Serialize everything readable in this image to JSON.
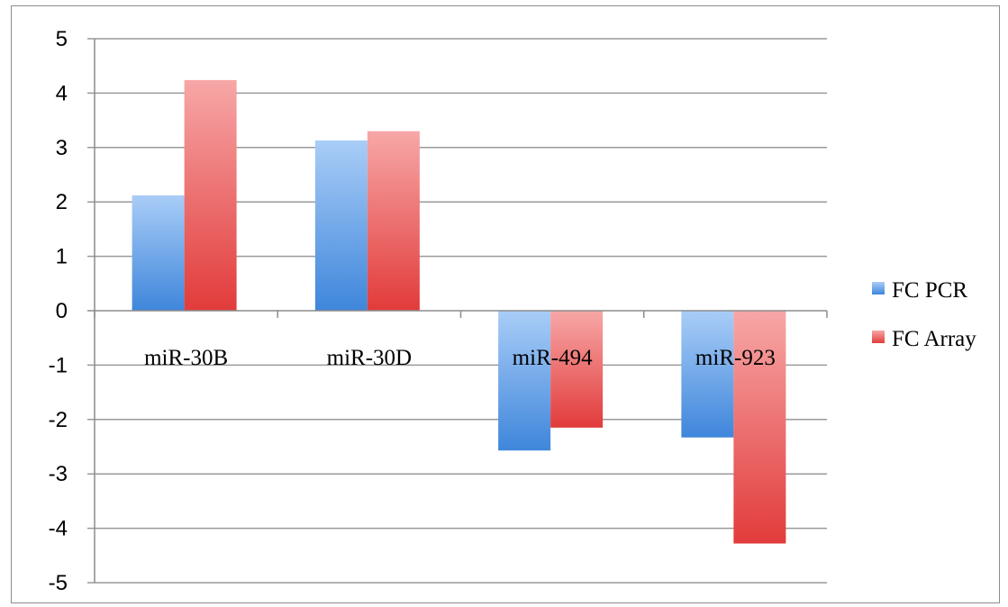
{
  "chart_data": {
    "type": "bar",
    "categories": [
      "miR-30B",
      "miR-30D",
      "miR-494",
      "miR-923"
    ],
    "series": [
      {
        "name": "FC PCR",
        "values": [
          2.12,
          3.13,
          -2.57,
          -2.33
        ],
        "color": "#4a90e2"
      },
      {
        "name": "FC Array",
        "values": [
          4.24,
          3.3,
          -2.15,
          -4.28
        ],
        "color": "#e84747"
      }
    ],
    "ylim": [
      -5,
      5
    ],
    "yticks": [
      5,
      4,
      3,
      2,
      1,
      0,
      -1,
      -2,
      -3,
      -4,
      -5
    ],
    "grid": true,
    "legend_position": "right",
    "title": "",
    "xlabel": "",
    "ylabel": ""
  }
}
